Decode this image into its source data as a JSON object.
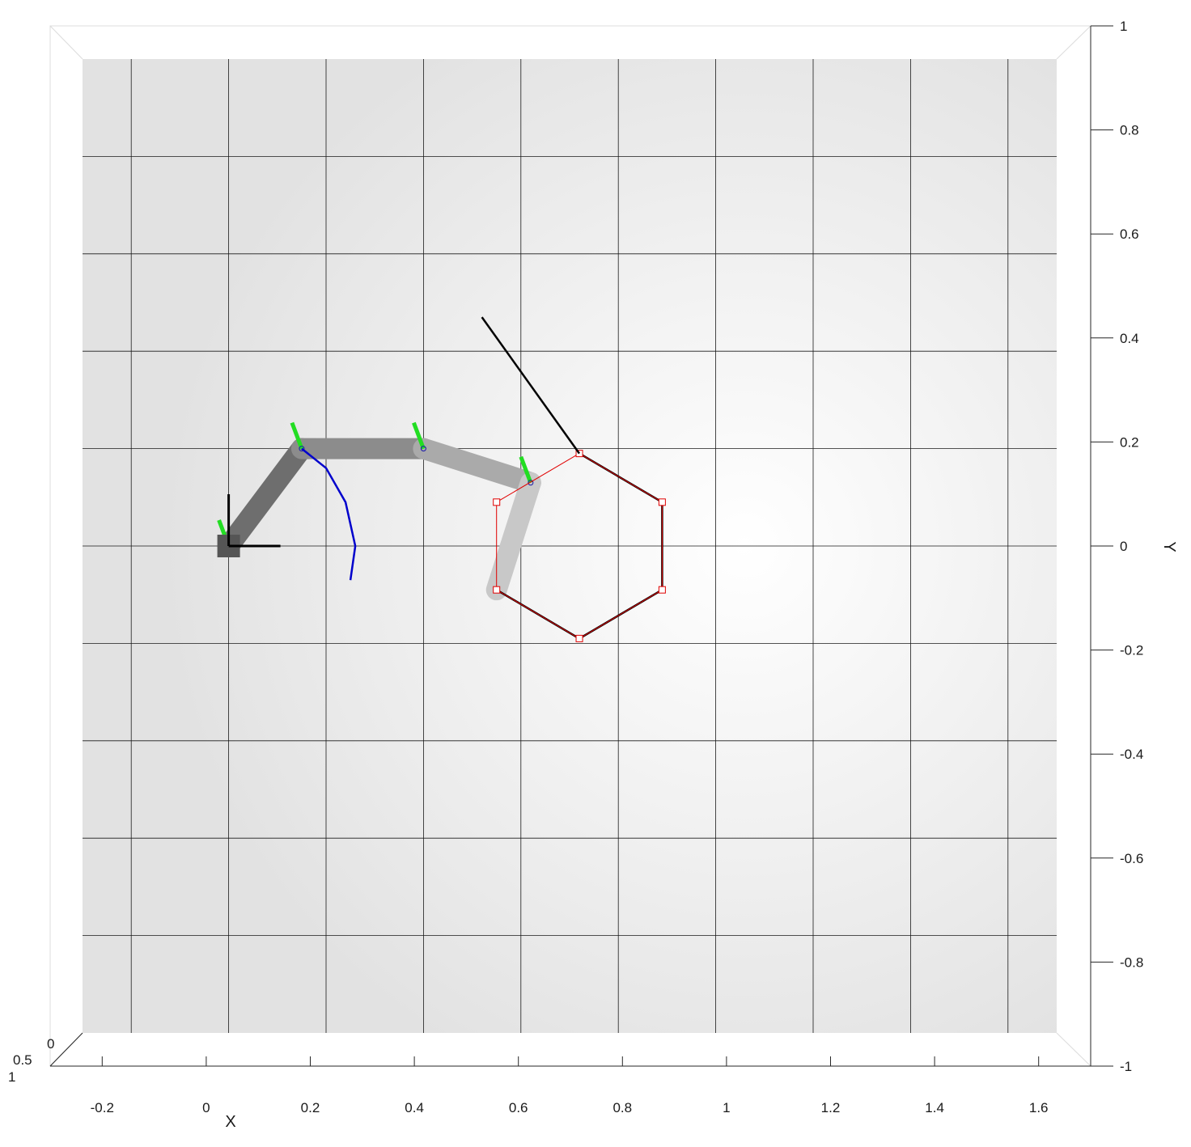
{
  "figure": {
    "background": "#ffffff",
    "wall_color": "#e6e6e6",
    "grid_color": "#1a1a1a",
    "frame_color": "#dcdcdc"
  },
  "chart_data": {
    "type": "scatter",
    "title": "",
    "xlabel": "X",
    "ylabel": "Y",
    "view": "3-D axes seen from above (robot arm workspace)",
    "xlim": [
      -0.3,
      1.7
    ],
    "ylim": [
      -1,
      1
    ],
    "x_ticks": [
      "-0.2",
      "0",
      "0.2",
      "0.4",
      "0.6",
      "0.8",
      "1",
      "1.2",
      "1.4",
      "1.6"
    ],
    "y_ticks": [
      "-1",
      "-0.8",
      "-0.6",
      "-0.4",
      "-0.2",
      "0",
      "0.2",
      "0.4",
      "0.6",
      "0.8",
      "1"
    ],
    "z_ticks": [
      "0",
      "0.5",
      "1"
    ],
    "grid": true,
    "series": [
      {
        "style": "thick shaded links",
        "color": "#8c8c8c",
        "points": [
          [
            0.0,
            0.0
          ],
          [
            0.15,
            0.2
          ],
          [
            0.4,
            0.2
          ],
          [
            0.62,
            0.13
          ],
          [
            0.55,
            -0.09
          ]
        ]
      },
      {
        "style": "hexagon (black)",
        "color": "#000000",
        "points": [
          [
            0.72,
            0.19
          ],
          [
            0.89,
            0.09
          ],
          [
            0.89,
            -0.09
          ],
          [
            0.72,
            -0.19
          ],
          [
            0.55,
            -0.09
          ]
        ]
      },
      {
        "style": "hexagon (red thin, square markers)",
        "color": "#e00000",
        "points": [
          [
            0.72,
            0.19
          ],
          [
            0.89,
            0.09
          ],
          [
            0.89,
            -0.09
          ],
          [
            0.72,
            -0.19
          ],
          [
            0.55,
            -0.09
          ],
          [
            0.55,
            0.09
          ],
          [
            0.72,
            0.19
          ]
        ]
      },
      {
        "style": "black segment",
        "color": "#000000",
        "points": [
          [
            0.52,
            0.47
          ],
          [
            0.72,
            0.19
          ]
        ]
      },
      {
        "style": "blue arc",
        "color": "#0000cc",
        "points": [
          [
            0.15,
            0.2
          ],
          [
            0.2,
            0.16
          ],
          [
            0.24,
            0.09
          ],
          [
            0.26,
            0.0
          ],
          [
            0.25,
            -0.07
          ]
        ]
      }
    ]
  }
}
